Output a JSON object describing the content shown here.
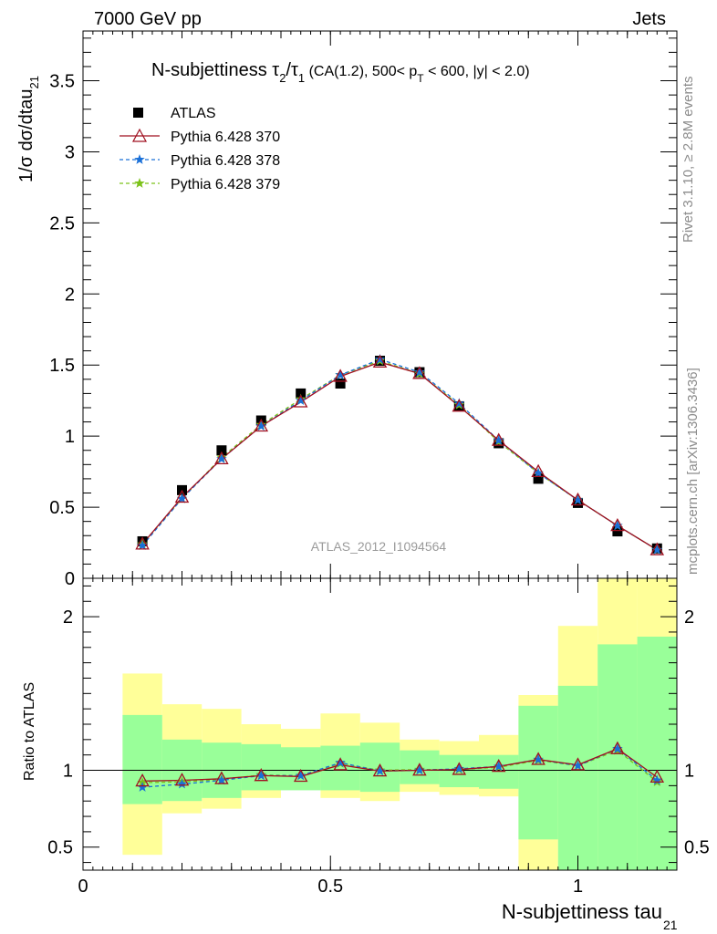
{
  "header": {
    "energy_label": "7000 GeV pp",
    "process_label": "Jets"
  },
  "side_labels": {
    "rivet": "Rivet 3.1.10, ≥ 2.8M events",
    "mcplots": "mcplots.cern.ch [arXiv:1306.3436]"
  },
  "chart_data": {
    "type": "line",
    "title": "N-subjettiness τ₂/τ₁ (CA(1.2), 500< p_T < 600, |y| < 2.0)",
    "title_parts": {
      "main": "N-subjettiness ",
      "tau": "τ",
      "sub2": "2",
      "slash": "/",
      "sub1": "1",
      "cuts_a": " (CA(1.2), 500< p",
      "subT": "T",
      "cuts_b": " < 600, |y| < 2.0)"
    },
    "analysis_label": "ATLAS_2012_I1094564",
    "xlabel": "N-subjettiness tau",
    "xlabel_sub": "21",
    "ylabel": "1/σ dσ/dtau",
    "ylabel_sub": "21",
    "ratio_ylabel": "Ratio to ATLAS",
    "xlim": [
      0,
      1.2
    ],
    "main_ylim": [
      0,
      3.85
    ],
    "ratio_ylim": [
      0.35,
      2.25
    ],
    "x_ticks": [
      0,
      0.5,
      1
    ],
    "x_tick_labels": [
      "0",
      "0.5",
      "1"
    ],
    "main_y_ticks": [
      0,
      0.5,
      1,
      1.5,
      2,
      2.5,
      3,
      3.5
    ],
    "main_y_tick_labels": [
      "0",
      "0.5",
      "1",
      "1.5",
      "2",
      "2.5",
      "3",
      "3.5"
    ],
    "ratio_y_ticks": [
      0.5,
      1,
      2
    ],
    "ratio_y_tick_labels": [
      "0.5",
      "1",
      "2"
    ],
    "legend_position": "top-left",
    "x": [
      0.12,
      0.2,
      0.28,
      0.36,
      0.44,
      0.52,
      0.6,
      0.68,
      0.76,
      0.84,
      0.92,
      1.0,
      1.08,
      1.16
    ],
    "bin_edges": [
      0.08,
      0.16,
      0.24,
      0.32,
      0.4,
      0.48,
      0.56,
      0.64,
      0.72,
      0.8,
      0.88,
      0.96,
      1.04,
      1.12,
      1.2
    ],
    "series": [
      {
        "name": "ATLAS",
        "role": "data",
        "color": "#000000",
        "marker": "square",
        "values": [
          0.26,
          0.62,
          0.9,
          1.11,
          1.3,
          1.37,
          1.53,
          1.45,
          1.21,
          0.95,
          0.7,
          0.53,
          0.33,
          0.21
        ]
      },
      {
        "name": "Pythia 6.428 370",
        "role": "mc",
        "color": "#a01020",
        "marker": "triangle",
        "dash": "solid",
        "values": [
          0.24,
          0.57,
          0.84,
          1.07,
          1.24,
          1.42,
          1.52,
          1.44,
          1.21,
          0.97,
          0.75,
          0.55,
          0.37,
          0.2
        ],
        "ratio": [
          0.93,
          0.935,
          0.945,
          0.965,
          0.96,
          1.035,
          0.995,
          1.0,
          1.005,
          1.025,
          1.07,
          1.035,
          1.14,
          0.955
        ]
      },
      {
        "name": "Pythia 6.428 378",
        "role": "mc",
        "color": "#1a70d8",
        "marker": "star",
        "dash": "4,3",
        "values": [
          0.23,
          0.56,
          0.84,
          1.07,
          1.25,
          1.43,
          1.54,
          1.45,
          1.23,
          0.97,
          0.74,
          0.55,
          0.37,
          0.2
        ],
        "ratio": [
          0.89,
          0.91,
          0.935,
          0.965,
          0.965,
          1.05,
          0.995,
          1.0,
          1.01,
          1.025,
          1.07,
          1.03,
          1.14,
          0.935
        ]
      },
      {
        "name": "Pythia 6.428 379",
        "role": "mc",
        "color": "#7cc21a",
        "marker": "star",
        "dash": "4,3",
        "values": [
          0.24,
          0.56,
          0.85,
          1.08,
          1.26,
          1.43,
          1.53,
          1.44,
          1.22,
          0.96,
          0.74,
          0.55,
          0.37,
          0.2
        ],
        "ratio": [
          0.92,
          0.925,
          0.94,
          0.97,
          0.965,
          1.045,
          1.0,
          1.005,
          1.005,
          1.02,
          1.065,
          1.03,
          1.13,
          0.925
        ]
      }
    ],
    "uncertainty_bands": {
      "inner_color": "#99ff99",
      "outer_color": "#ffff99",
      "inner": [
        [
          0.78,
          1.36
        ],
        [
          0.8,
          1.2
        ],
        [
          0.82,
          1.18
        ],
        [
          0.87,
          1.17
        ],
        [
          0.87,
          1.15
        ],
        [
          0.87,
          1.16
        ],
        [
          0.86,
          1.18
        ],
        [
          0.91,
          1.13
        ],
        [
          0.89,
          1.1
        ],
        [
          0.88,
          1.1
        ],
        [
          0.55,
          1.42
        ],
        [
          0.35,
          1.55
        ],
        [
          0.35,
          1.82
        ],
        [
          0.35,
          1.87
        ]
      ],
      "outer": [
        [
          0.45,
          1.63
        ],
        [
          0.72,
          1.43
        ],
        [
          0.75,
          1.4
        ],
        [
          0.82,
          1.3
        ],
        [
          0.88,
          1.27
        ],
        [
          0.82,
          1.37
        ],
        [
          0.8,
          1.31
        ],
        [
          0.86,
          1.2
        ],
        [
          0.84,
          1.19
        ],
        [
          0.83,
          1.23
        ],
        [
          0.35,
          1.49
        ],
        [
          0.35,
          1.94
        ],
        [
          0.35,
          2.25
        ],
        [
          0.35,
          2.25
        ]
      ]
    }
  }
}
